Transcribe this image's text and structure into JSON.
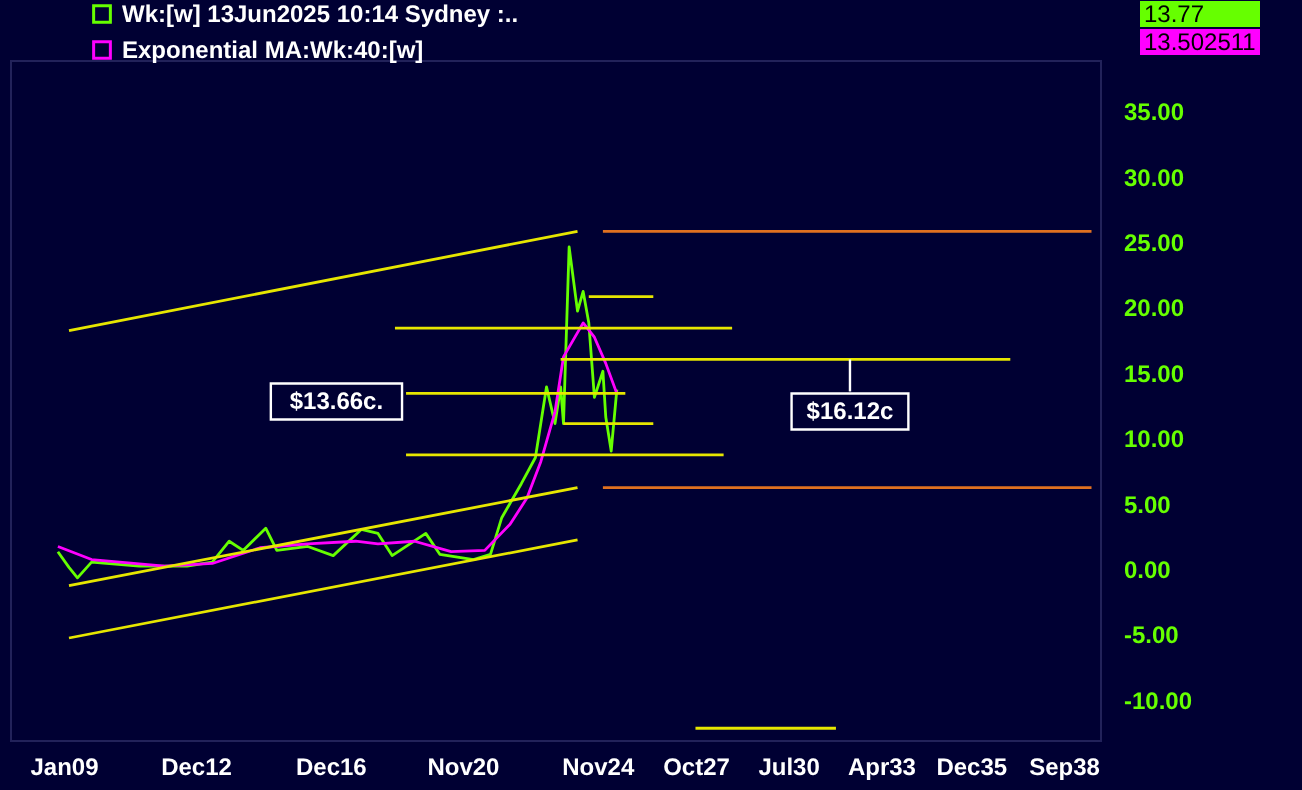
{
  "chart_data": {
    "type": "line",
    "legend": "top left",
    "xlim": [
      "2007-06",
      "2039-10"
    ],
    "xticks": [
      {
        "value": "2009-01",
        "label": "Jan09"
      },
      {
        "value": "2012-12",
        "label": "Dec12"
      },
      {
        "value": "2016-12",
        "label": "Dec16"
      },
      {
        "value": "2020-11",
        "label": "Nov20"
      },
      {
        "value": "2024-11",
        "label": "Nov24"
      },
      {
        "value": "2027-10",
        "label": "Oct27"
      },
      {
        "value": "2030-07",
        "label": "Jul30"
      },
      {
        "value": "2033-04",
        "label": "Apr33"
      },
      {
        "value": "2035-12",
        "label": "Dec35"
      },
      {
        "value": "2038-09",
        "label": "Sep38"
      }
    ],
    "ylim": [
      -13,
      39
    ],
    "yticks": [
      {
        "value": -10,
        "label": "-10.00"
      },
      {
        "value": -5,
        "label": "-5.00"
      },
      {
        "value": 0,
        "label": "0.00"
      },
      {
        "value": 5,
        "label": "5.00"
      },
      {
        "value": 10,
        "label": "10.00"
      },
      {
        "value": 15,
        "label": "15.00"
      },
      {
        "value": 20,
        "label": "20.00"
      },
      {
        "value": 25,
        "label": "25.00"
      },
      {
        "value": 30,
        "label": "30.00"
      },
      {
        "value": 35,
        "label": "35.00"
      }
    ],
    "series": [
      {
        "name": "Wk:[w]  13Jun2025 10:14 Sydney :..",
        "color": "#66ff00",
        "x": [
          "2008-11",
          "2009-03",
          "2009-06",
          "2009-11",
          "2011-04",
          "2012-09",
          "2013-06",
          "2013-12",
          "2014-05",
          "2015-01",
          "2015-05",
          "2016-04",
          "2017-01",
          "2017-11",
          "2018-05",
          "2018-10",
          "2019-10",
          "2020-03",
          "2021-03",
          "2021-09",
          "2022-01",
          "2022-08",
          "2023-01",
          "2023-05",
          "2023-08",
          "2023-10",
          "2023-11",
          "2024-01",
          "2024-04",
          "2024-06",
          "2024-08",
          "2024-10",
          "2025-01",
          "2025-02",
          "2025-04",
          "2025-06"
        ],
        "values": [
          1.4,
          0.2,
          -0.6,
          0.6,
          0.3,
          0.3,
          0.6,
          2.2,
          1.5,
          3.2,
          1.5,
          1.8,
          1.1,
          3.1,
          2.8,
          1.1,
          2.8,
          1.2,
          0.8,
          1.2,
          4.0,
          6.6,
          8.6,
          14.0,
          11.2,
          14.0,
          11.2,
          24.7,
          19.8,
          21.3,
          18.9,
          13.2,
          15.2,
          11.7,
          9.1,
          13.8
        ]
      },
      {
        "name": "Exponential MA:Wk:40:[w]",
        "color": "#ff00ff",
        "x": [
          "2008-11",
          "2009-11",
          "2012-01",
          "2013-06",
          "2014-11",
          "2016-04",
          "2017-09",
          "2018-05",
          "2019-06",
          "2020-07",
          "2021-07",
          "2022-04",
          "2022-10",
          "2023-03",
          "2023-08",
          "2023-11",
          "2024-06",
          "2024-10",
          "2025-02",
          "2025-06"
        ],
        "values": [
          1.8,
          0.8,
          0.3,
          0.5,
          1.7,
          2.0,
          2.2,
          2.0,
          2.2,
          1.4,
          1.5,
          3.5,
          5.5,
          8.3,
          12.1,
          16.3,
          18.9,
          17.8,
          15.8,
          13.5
        ]
      },
      {
        "color": "#e6e600",
        "x": [
          "2009-03",
          "2024-04"
        ],
        "values": [
          18.3,
          25.9
        ]
      },
      {
        "color": "#e6e600",
        "x": [
          "2009-03",
          "2024-04"
        ],
        "values": [
          -1.2,
          6.3
        ]
      },
      {
        "color": "#e6e600",
        "x": [
          "2009-03",
          "2024-04"
        ],
        "values": [
          -5.2,
          2.3
        ]
      },
      {
        "color": "#e07020",
        "x": [
          "2025-01",
          "2039-07"
        ],
        "values": [
          25.9,
          25.9
        ]
      },
      {
        "color": "#e07020",
        "x": [
          "2025-01",
          "2039-07"
        ],
        "values": [
          6.3,
          6.3
        ]
      },
      {
        "color": "#e6e600",
        "x": [
          "2024-08",
          "2026-07"
        ],
        "values": [
          20.9,
          20.9
        ]
      },
      {
        "color": "#e6e600",
        "x": [
          "2018-11",
          "2028-11"
        ],
        "values": [
          18.5,
          18.5
        ]
      },
      {
        "color": "#e6e600",
        "x": [
          "2023-10",
          "2037-02"
        ],
        "values": [
          16.1,
          16.1
        ]
      },
      {
        "color": "#e6e600",
        "x": [
          "2019-03",
          "2025-09"
        ],
        "values": [
          13.5,
          13.5
        ]
      },
      {
        "color": "#e6e600",
        "x": [
          "2023-11",
          "2026-07"
        ],
        "values": [
          11.2,
          11.2
        ]
      },
      {
        "color": "#e6e600",
        "x": [
          "2019-03",
          "2028-08"
        ],
        "values": [
          8.8,
          8.8
        ]
      },
      {
        "color": "#e6e600",
        "x": [
          "2027-10",
          "2031-12"
        ],
        "values": [
          -12.1,
          -12.1
        ]
      }
    ],
    "annotations": [
      {
        "text": "$13.66c.",
        "x": "2019-03",
        "y": 13.5
      },
      {
        "text": "$16.12c",
        "x": "2032-05",
        "y": 16.1
      },
      "13.77",
      "13.502511"
    ]
  }
}
